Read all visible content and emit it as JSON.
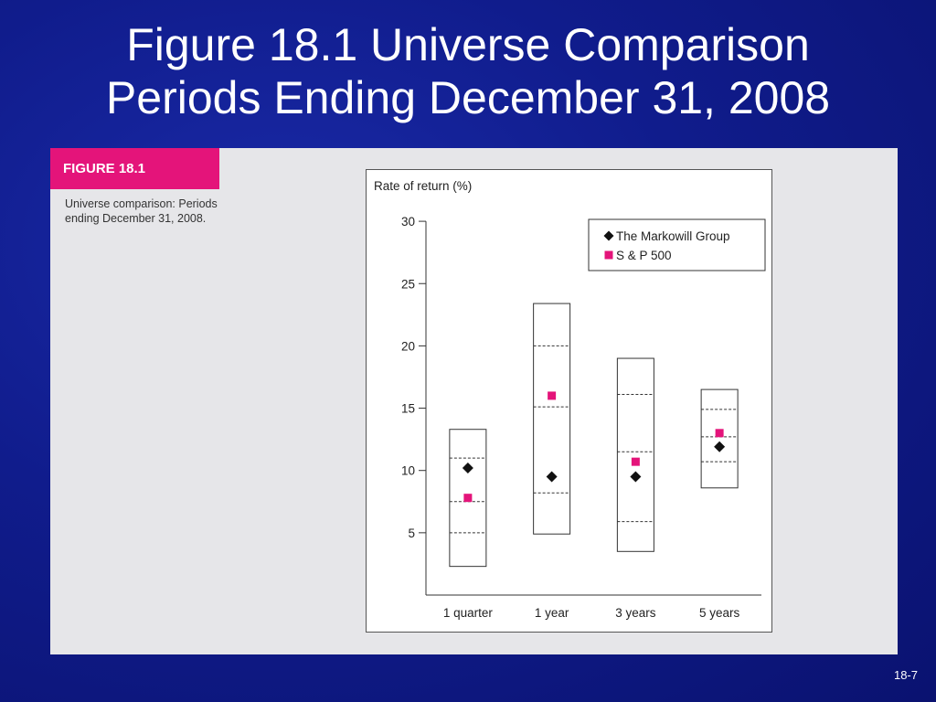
{
  "slide": {
    "title_line1": "Figure 18.1 Universe Comparison",
    "title_line2": "Periods Ending December 31, 2008",
    "slide_number": "18-7"
  },
  "figure": {
    "banner": "FIGURE 18.1",
    "caption": "Universe comparison: Periods ending December 31, 2008."
  },
  "colors": {
    "background": "#101c8c",
    "banner": "#e4147a",
    "markowill": "#111111",
    "sp500": "#e4147a"
  },
  "chart_data": {
    "type": "scatter",
    "ylabel": "Rate of return (%)",
    "xlabel": "",
    "ylim": [
      0,
      30
    ],
    "yticks": [
      5,
      10,
      15,
      20,
      25,
      30
    ],
    "categories": [
      "1 quarter",
      "1 year",
      "3 years",
      "5 years"
    ],
    "boxes": [
      {
        "category": "1 quarter",
        "low": 2.3,
        "q1": 5.0,
        "median": 7.5,
        "q3": 11.0,
        "high": 13.3
      },
      {
        "category": "1 year",
        "low": 4.9,
        "q1": 8.2,
        "median": 15.1,
        "q3": 20.0,
        "high": 23.4
      },
      {
        "category": "3 years",
        "low": 3.5,
        "q1": 5.9,
        "median": 11.5,
        "q3": 16.1,
        "high": 19.0
      },
      {
        "category": "5 years",
        "low": 8.6,
        "q1": 10.7,
        "median": 12.7,
        "q3": 14.9,
        "high": 16.5
      }
    ],
    "series": [
      {
        "name": "The Markowill Group",
        "marker": "diamond",
        "values": [
          10.2,
          9.5,
          9.5,
          11.9
        ]
      },
      {
        "name": "S & P 500",
        "marker": "square",
        "values": [
          7.8,
          16.0,
          10.7,
          13.0
        ]
      }
    ],
    "legend_position": "top-right"
  }
}
